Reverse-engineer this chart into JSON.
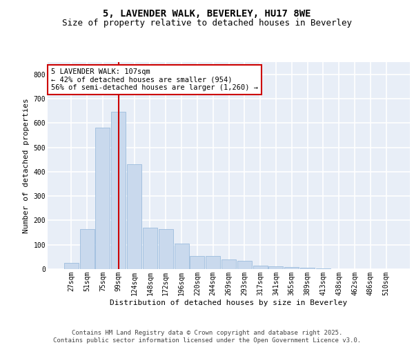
{
  "title_line1": "5, LAVENDER WALK, BEVERLEY, HU17 8WE",
  "title_line2": "Size of property relative to detached houses in Beverley",
  "xlabel": "Distribution of detached houses by size in Beverley",
  "ylabel": "Number of detached properties",
  "bar_labels": [
    "27sqm",
    "51sqm",
    "75sqm",
    "99sqm",
    "124sqm",
    "148sqm",
    "172sqm",
    "196sqm",
    "220sqm",
    "244sqm",
    "269sqm",
    "293sqm",
    "317sqm",
    "341sqm",
    "365sqm",
    "389sqm",
    "413sqm",
    "438sqm",
    "462sqm",
    "486sqm",
    "510sqm"
  ],
  "bar_values": [
    25,
    165,
    580,
    645,
    430,
    170,
    165,
    105,
    55,
    55,
    40,
    35,
    15,
    10,
    8,
    5,
    2,
    1,
    0,
    0,
    0
  ],
  "bar_color": "#c9d9ed",
  "bar_edgecolor": "#8fb4d9",
  "bar_width": 0.92,
  "vline_x": 3,
  "vline_color": "#cc0000",
  "annotation_text": "5 LAVENDER WALK: 107sqm\n← 42% of detached houses are smaller (954)\n56% of semi-detached houses are larger (1,260) →",
  "annotation_box_color": "#ffffff",
  "annotation_box_edgecolor": "#cc0000",
  "ylim": [
    0,
    850
  ],
  "yticks": [
    0,
    100,
    200,
    300,
    400,
    500,
    600,
    700,
    800
  ],
  "footer_text": "Contains HM Land Registry data © Crown copyright and database right 2025.\nContains public sector information licensed under the Open Government Licence v3.0.",
  "background_color": "#e8eef7",
  "grid_color": "#ffffff",
  "title_fontsize": 10,
  "subtitle_fontsize": 9,
  "axis_label_fontsize": 8,
  "tick_fontsize": 7,
  "annotation_fontsize": 7.5,
  "footer_fontsize": 6.5
}
